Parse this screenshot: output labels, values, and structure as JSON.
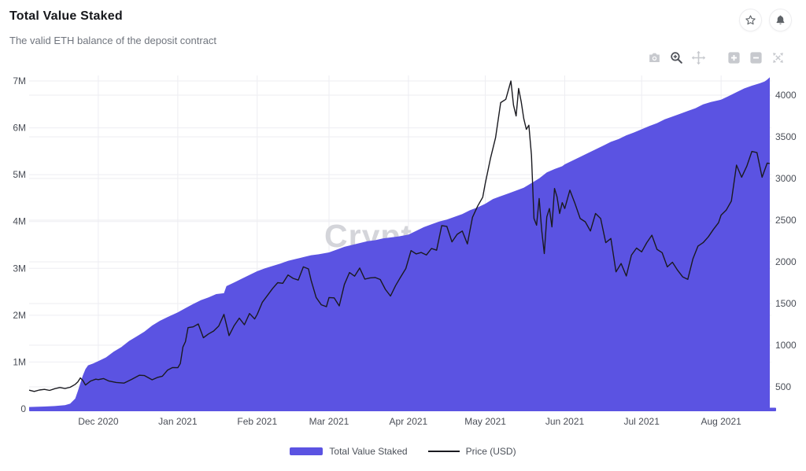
{
  "header": {
    "title": "Total Value Staked",
    "subtitle": "The valid ETH balance of the deposit contract"
  },
  "window_actions": {
    "icons": [
      "star",
      "bell"
    ]
  },
  "modebar": {
    "tools": [
      "camera",
      "zoom",
      "pan",
      "zoom-in",
      "zoom-out",
      "autoscale"
    ],
    "active_tool": "zoom"
  },
  "watermark": "CryptoQuant",
  "colors": {
    "accent": "#5B53E2",
    "price_line": "#1a1a20",
    "grid": "#ededf2",
    "tick_text": "#4a4e57",
    "watermark": "#d4d5da"
  },
  "legend": {
    "items": [
      {
        "label": "Total Value Staked",
        "type": "area",
        "color": "#5B53E2"
      },
      {
        "label": "Price (USD)",
        "type": "line",
        "color": "#1a1a20"
      }
    ]
  },
  "chart_data": {
    "type": "area",
    "subtype": "time-series combo: area (left axis) + line (right axis)",
    "title": "Total Value Staked",
    "x_axis": {
      "unit": "date (t = days since 2020-11-04)",
      "t_max": 289,
      "ticks": [
        {
          "t": 27,
          "label": "Dec 2020"
        },
        {
          "t": 58,
          "label": "Jan 2021"
        },
        {
          "t": 89,
          "label": "Feb 2021"
        },
        {
          "t": 117,
          "label": "Mar 2021"
        },
        {
          "t": 148,
          "label": "Apr 2021"
        },
        {
          "t": 178,
          "label": "May 2021"
        },
        {
          "t": 209,
          "label": "Jun 2021"
        },
        {
          "t": 239,
          "label": "Jul 2021"
        },
        {
          "t": 270,
          "label": "Aug 2021"
        }
      ]
    },
    "left_axis": {
      "series": "Total Value Staked",
      "unit": "ETH",
      "range": [
        0,
        7000000
      ],
      "ticks": [
        "0",
        "1M",
        "2M",
        "3M",
        "4M",
        "5M",
        "6M",
        "7M"
      ]
    },
    "right_axis": {
      "series": "Price (USD)",
      "ticks_range": [
        500,
        4000
      ],
      "ticks": [
        "500",
        "1000",
        "1500",
        "2000",
        "2500",
        "3000",
        "3500",
        "4000"
      ]
    },
    "grid": true,
    "legend_position": "bottom-center",
    "series": [
      {
        "name": "Total Value Staked",
        "type": "area",
        "axis": "left",
        "unit": "million ETH",
        "color": "#5B53E2",
        "points": [
          [
            0,
            0.04
          ],
          [
            6,
            0.05
          ],
          [
            10,
            0.06
          ],
          [
            14,
            0.08
          ],
          [
            16,
            0.11
          ],
          [
            18,
            0.22
          ],
          [
            19,
            0.38
          ],
          [
            20,
            0.55
          ],
          [
            21,
            0.72
          ],
          [
            22,
            0.85
          ],
          [
            23,
            0.93
          ],
          [
            25,
            0.97
          ],
          [
            27,
            1.02
          ],
          [
            30,
            1.1
          ],
          [
            33,
            1.22
          ],
          [
            36,
            1.32
          ],
          [
            39,
            1.45
          ],
          [
            42,
            1.55
          ],
          [
            45,
            1.65
          ],
          [
            48,
            1.78
          ],
          [
            51,
            1.88
          ],
          [
            54,
            1.96
          ],
          [
            58,
            2.06
          ],
          [
            61,
            2.15
          ],
          [
            64,
            2.24
          ],
          [
            67,
            2.32
          ],
          [
            70,
            2.38
          ],
          [
            73,
            2.45
          ],
          [
            76,
            2.47
          ],
          [
            77,
            2.62
          ],
          [
            80,
            2.7
          ],
          [
            83,
            2.78
          ],
          [
            86,
            2.86
          ],
          [
            89,
            2.94
          ],
          [
            92,
            3.0
          ],
          [
            95,
            3.05
          ],
          [
            98,
            3.1
          ],
          [
            101,
            3.16
          ],
          [
            104,
            3.2
          ],
          [
            107,
            3.24
          ],
          [
            110,
            3.28
          ],
          [
            113,
            3.3
          ],
          [
            117,
            3.34
          ],
          [
            120,
            3.4
          ],
          [
            123,
            3.46
          ],
          [
            126,
            3.5
          ],
          [
            129,
            3.54
          ],
          [
            132,
            3.58
          ],
          [
            135,
            3.6
          ],
          [
            138,
            3.64
          ],
          [
            141,
            3.66
          ],
          [
            144,
            3.68
          ],
          [
            148,
            3.72
          ],
          [
            151,
            3.8
          ],
          [
            154,
            3.88
          ],
          [
            157,
            3.94
          ],
          [
            160,
            4.0
          ],
          [
            163,
            4.04
          ],
          [
            166,
            4.1
          ],
          [
            169,
            4.16
          ],
          [
            172,
            4.24
          ],
          [
            175,
            4.3
          ],
          [
            178,
            4.38
          ],
          [
            181,
            4.48
          ],
          [
            184,
            4.54
          ],
          [
            187,
            4.6
          ],
          [
            190,
            4.66
          ],
          [
            193,
            4.72
          ],
          [
            196,
            4.82
          ],
          [
            199,
            4.92
          ],
          [
            202,
            5.05
          ],
          [
            205,
            5.12
          ],
          [
            208,
            5.18
          ],
          [
            209,
            5.22
          ],
          [
            212,
            5.3
          ],
          [
            215,
            5.38
          ],
          [
            218,
            5.46
          ],
          [
            221,
            5.54
          ],
          [
            224,
            5.62
          ],
          [
            227,
            5.7
          ],
          [
            230,
            5.76
          ],
          [
            233,
            5.84
          ],
          [
            236,
            5.9
          ],
          [
            239,
            5.97
          ],
          [
            242,
            6.04
          ],
          [
            245,
            6.1
          ],
          [
            248,
            6.18
          ],
          [
            251,
            6.24
          ],
          [
            254,
            6.3
          ],
          [
            257,
            6.36
          ],
          [
            260,
            6.42
          ],
          [
            263,
            6.5
          ],
          [
            266,
            6.55
          ],
          [
            270,
            6.6
          ],
          [
            273,
            6.68
          ],
          [
            276,
            6.76
          ],
          [
            279,
            6.84
          ],
          [
            282,
            6.9
          ],
          [
            285,
            6.95
          ],
          [
            287,
            6.99
          ],
          [
            288,
            7.03
          ],
          [
            289,
            7.08
          ]
        ]
      },
      {
        "name": "Price (USD)",
        "type": "line",
        "axis": "right",
        "unit": "USD",
        "color": "#1a1a20",
        "points": [
          [
            0,
            460
          ],
          [
            2,
            445
          ],
          [
            4,
            462
          ],
          [
            6,
            470
          ],
          [
            8,
            458
          ],
          [
            10,
            478
          ],
          [
            12,
            492
          ],
          [
            14,
            480
          ],
          [
            16,
            495
          ],
          [
            18,
            530
          ],
          [
            19,
            560
          ],
          [
            20,
            608
          ],
          [
            21,
            575
          ],
          [
            22,
            522
          ],
          [
            24,
            570
          ],
          [
            26,
            592
          ],
          [
            27,
            587
          ],
          [
            29,
            600
          ],
          [
            31,
            572
          ],
          [
            34,
            553
          ],
          [
            37,
            545
          ],
          [
            40,
            590
          ],
          [
            43,
            640
          ],
          [
            45,
            636
          ],
          [
            48,
            585
          ],
          [
            50,
            612
          ],
          [
            52,
            628
          ],
          [
            54,
            700
          ],
          [
            56,
            732
          ],
          [
            58,
            730
          ],
          [
            59,
            780
          ],
          [
            60,
            978
          ],
          [
            61,
            1042
          ],
          [
            62,
            1210
          ],
          [
            64,
            1220
          ],
          [
            66,
            1255
          ],
          [
            68,
            1090
          ],
          [
            70,
            1135
          ],
          [
            72,
            1170
          ],
          [
            74,
            1230
          ],
          [
            76,
            1370
          ],
          [
            78,
            1115
          ],
          [
            80,
            1235
          ],
          [
            82,
            1325
          ],
          [
            84,
            1245
          ],
          [
            86,
            1380
          ],
          [
            88,
            1315
          ],
          [
            89,
            1370
          ],
          [
            91,
            1515
          ],
          [
            93,
            1597
          ],
          [
            95,
            1680
          ],
          [
            97,
            1750
          ],
          [
            99,
            1742
          ],
          [
            101,
            1842
          ],
          [
            103,
            1802
          ],
          [
            105,
            1781
          ],
          [
            107,
            1940
          ],
          [
            109,
            1915
          ],
          [
            110,
            1780
          ],
          [
            112,
            1572
          ],
          [
            114,
            1485
          ],
          [
            116,
            1462
          ],
          [
            117,
            1572
          ],
          [
            119,
            1568
          ],
          [
            121,
            1472
          ],
          [
            123,
            1728
          ],
          [
            125,
            1872
          ],
          [
            127,
            1828
          ],
          [
            129,
            1925
          ],
          [
            131,
            1792
          ],
          [
            133,
            1808
          ],
          [
            135,
            1812
          ],
          [
            137,
            1788
          ],
          [
            139,
            1670
          ],
          [
            141,
            1590
          ],
          [
            143,
            1715
          ],
          [
            145,
            1820
          ],
          [
            147,
            1920
          ],
          [
            149,
            2135
          ],
          [
            151,
            2095
          ],
          [
            153,
            2112
          ],
          [
            155,
            2082
          ],
          [
            157,
            2160
          ],
          [
            159,
            2140
          ],
          [
            161,
            2435
          ],
          [
            163,
            2425
          ],
          [
            165,
            2240
          ],
          [
            167,
            2330
          ],
          [
            169,
            2370
          ],
          [
            171,
            2215
          ],
          [
            173,
            2535
          ],
          [
            175,
            2668
          ],
          [
            177,
            2775
          ],
          [
            178,
            2945
          ],
          [
            180,
            3240
          ],
          [
            182,
            3490
          ],
          [
            184,
            3910
          ],
          [
            186,
            3950
          ],
          [
            188,
            4170
          ],
          [
            189,
            3880
          ],
          [
            190,
            3750
          ],
          [
            191,
            4080
          ],
          [
            192,
            3920
          ],
          [
            193,
            3720
          ],
          [
            194,
            3590
          ],
          [
            195,
            3640
          ],
          [
            196,
            3280
          ],
          [
            197,
            2520
          ],
          [
            198,
            2440
          ],
          [
            199,
            2760
          ],
          [
            200,
            2380
          ],
          [
            201,
            2100
          ],
          [
            202,
            2540
          ],
          [
            203,
            2640
          ],
          [
            204,
            2420
          ],
          [
            205,
            2880
          ],
          [
            206,
            2780
          ],
          [
            207,
            2580
          ],
          [
            208,
            2710
          ],
          [
            209,
            2640
          ],
          [
            211,
            2860
          ],
          [
            213,
            2700
          ],
          [
            215,
            2520
          ],
          [
            217,
            2480
          ],
          [
            219,
            2370
          ],
          [
            221,
            2580
          ],
          [
            223,
            2520
          ],
          [
            225,
            2230
          ],
          [
            227,
            2280
          ],
          [
            229,
            1880
          ],
          [
            231,
            1980
          ],
          [
            233,
            1830
          ],
          [
            235,
            2080
          ],
          [
            237,
            2165
          ],
          [
            239,
            2120
          ],
          [
            241,
            2230
          ],
          [
            243,
            2320
          ],
          [
            245,
            2150
          ],
          [
            247,
            2110
          ],
          [
            249,
            1940
          ],
          [
            251,
            1995
          ],
          [
            253,
            1900
          ],
          [
            255,
            1820
          ],
          [
            257,
            1790
          ],
          [
            259,
            2035
          ],
          [
            261,
            2190
          ],
          [
            263,
            2230
          ],
          [
            265,
            2300
          ],
          [
            267,
            2390
          ],
          [
            269,
            2470
          ],
          [
            270,
            2560
          ],
          [
            272,
            2620
          ],
          [
            274,
            2730
          ],
          [
            276,
            3160
          ],
          [
            278,
            3015
          ],
          [
            280,
            3145
          ],
          [
            282,
            3325
          ],
          [
            284,
            3310
          ],
          [
            285,
            3160
          ],
          [
            286,
            3015
          ],
          [
            288,
            3185
          ],
          [
            289,
            3180
          ]
        ]
      }
    ]
  }
}
